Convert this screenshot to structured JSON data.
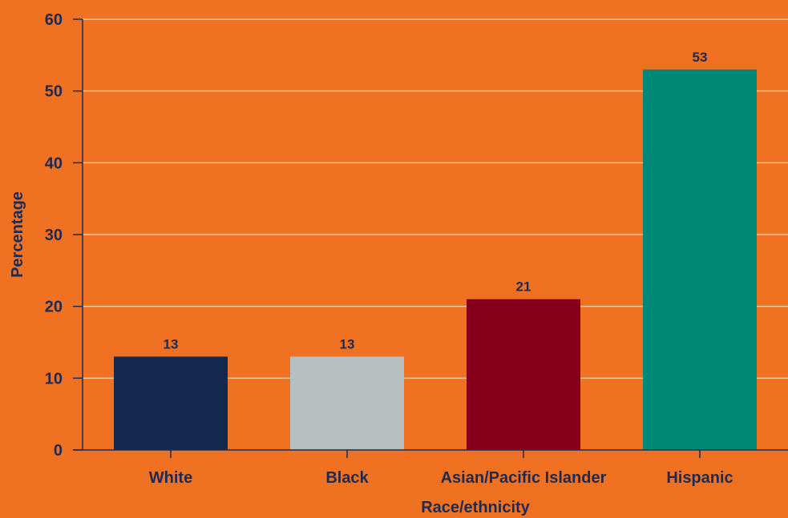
{
  "chart_data": {
    "type": "bar",
    "categories": [
      "White",
      "Black",
      "Asian/Pacific Islander",
      "Hispanic"
    ],
    "values": [
      13,
      13,
      21,
      53
    ],
    "data_labels": [
      "13",
      "13",
      "21",
      "53"
    ],
    "bar_colors": [
      "#132a4e",
      "#b8bfc1",
      "#86001c",
      "#008877"
    ],
    "xlabel": "Race/ethnicity",
    "ylabel": "Percentage",
    "ylim": [
      0,
      60
    ],
    "yticks": [
      0,
      10,
      20,
      30,
      40,
      50,
      60
    ],
    "grid": true,
    "colors": {
      "background": "#f07122",
      "gridline": "#f6c49a",
      "text": "#1d2b52",
      "axis": "#1d2b52"
    }
  }
}
